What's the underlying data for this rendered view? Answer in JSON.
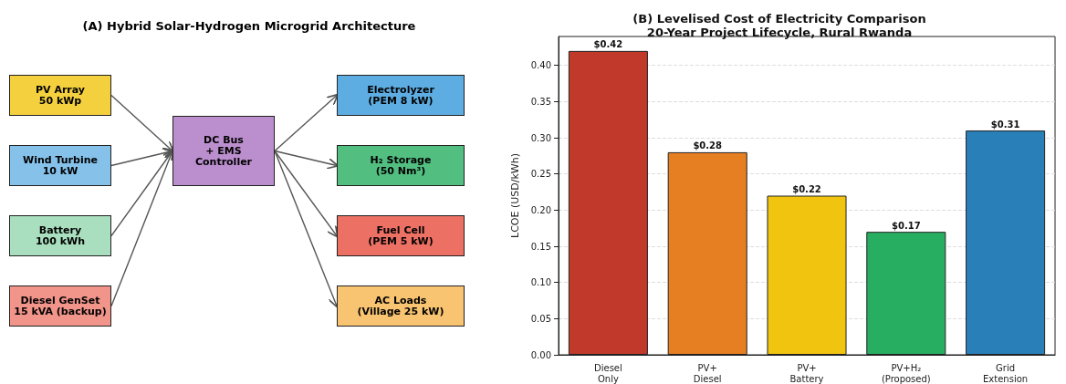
{
  "chart_data": [
    {
      "type": "other",
      "title": "(A) Hybrid Solar-Hydrogen Microgrid Architecture",
      "annotations": [
        "PV Array\n50 kWp",
        "Wind Turbine\n10 kW",
        "Battery\n100 kWh",
        "Diesel GenSet\n15 kVA (backup)",
        "DC Bus\n+ EMS\nController",
        "Electrolyzer\n(PEM 8 kW)",
        "H₂ Storage\n(50 Nm³)",
        "Fuel Cell\n(PEM 5 kW)",
        "AC Loads\n(Village 25 kW)"
      ],
      "colors": [
        "#f4d03f",
        "#85c1e9",
        "#a9dfbf",
        "#f1948a",
        "#bb8fce",
        "#5dade2",
        "#52be80",
        "#ec7063",
        "#f8c471"
      ]
    },
    {
      "type": "bar",
      "title": "(B) Levelised Cost of Electricity Comparison\n20-Year Project Lifecycle, Rural Rwanda",
      "ylabel": "LCOE (USD/kWh)",
      "categories": [
        "Diesel\nOnly",
        "PV+\nDiesel",
        "PV+\nBattery",
        "PV+H₂\n(Proposed)",
        "Grid\nExtension"
      ],
      "values": [
        0.42,
        0.28,
        0.22,
        0.17,
        0.31
      ],
      "value_labels": [
        "$0.42",
        "$0.28",
        "$0.22",
        "$0.17",
        "$0.31"
      ],
      "colors": [
        "#c0392b",
        "#e67e22",
        "#f1c40f",
        "#27ae60",
        "#2980b9"
      ],
      "ylim": [
        0,
        0.44
      ],
      "yticks": [
        {
          "value": 0,
          "label": "0.00"
        },
        {
          "value": 0.05,
          "label": "0.05"
        },
        {
          "value": 0.1,
          "label": "0.10"
        },
        {
          "value": 0.15,
          "label": "0.15"
        },
        {
          "value": 0.2,
          "label": "0.20"
        },
        {
          "value": 0.25,
          "label": "0.25"
        },
        {
          "value": 0.3,
          "label": "0.30"
        },
        {
          "value": 0.35,
          "label": "0.35"
        },
        {
          "value": 0.4,
          "label": "0.40"
        }
      ],
      "grid": "y"
    }
  ]
}
